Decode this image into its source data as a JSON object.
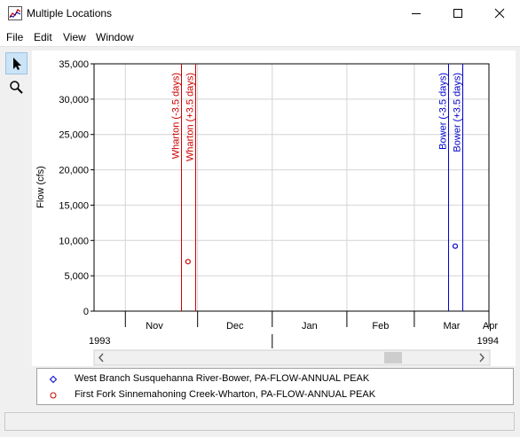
{
  "window": {
    "title": "Multiple Locations"
  },
  "menu": {
    "items": [
      "File",
      "Edit",
      "View",
      "Window"
    ]
  },
  "tools": [
    {
      "name": "pointer-tool",
      "icon": "arrow-pointer-icon",
      "active": true
    },
    {
      "name": "zoom-tool",
      "icon": "magnifier-icon",
      "active": false
    }
  ],
  "chart_data": {
    "type": "scatter",
    "ylabel": "Flow (cfs)",
    "ylim": [
      0,
      35000
    ],
    "y_ticks": [
      0,
      5000,
      10000,
      15000,
      20000,
      25000,
      30000,
      35000
    ],
    "y_tick_labels": [
      "0",
      "5,000",
      "10,000",
      "15,000",
      "20,000",
      "25,000",
      "30,000",
      "35,000"
    ],
    "x_range": [
      "1993-10-19",
      "1994-04-01"
    ],
    "months": [
      {
        "label": "Nov",
        "start": "1993-11-01"
      },
      {
        "label": "Dec",
        "start": "1993-12-01"
      },
      {
        "label": "Jan",
        "start": "1994-01-01"
      },
      {
        "label": "Feb",
        "start": "1994-02-01"
      },
      {
        "label": "Mar",
        "start": "1994-03-01"
      },
      {
        "label": "Apr",
        "start": "1994-04-01"
      }
    ],
    "years": [
      {
        "label": "1993",
        "at": "1993-10-19"
      },
      {
        "label": "1994",
        "at": "1994-04-01"
      }
    ],
    "year_divider": "1994-01-01",
    "series": [
      {
        "name": "West Branch Susquehanna River-Bower, PA-FLOW-ANNUAL PEAK",
        "color": "#0000cc",
        "marker": "diamond",
        "points": [
          {
            "x": "1994-03-18",
            "y": 9200
          }
        ]
      },
      {
        "name": "First Fork Sinnemahoning Creek-Wharton, PA-FLOW-ANNUAL PEAK",
        "color": "#cc0000",
        "marker": "circle",
        "points": [
          {
            "x": "1993-11-27",
            "y": 7000
          }
        ]
      }
    ],
    "markers": [
      {
        "label": "Wharton (-3.5 days)",
        "x": "1993-11-24",
        "color": "#cc0000"
      },
      {
        "label": "Wharton (+3.5 days)",
        "x": "1993-11-30",
        "color": "#cc0000"
      },
      {
        "label": "Bower (-3.5 days)",
        "x": "1994-03-15",
        "color": "#0000cc"
      },
      {
        "label": "Bower (+3.5 days)",
        "x": "1994-03-21",
        "color": "#0000cc"
      }
    ],
    "grid": true
  }
}
